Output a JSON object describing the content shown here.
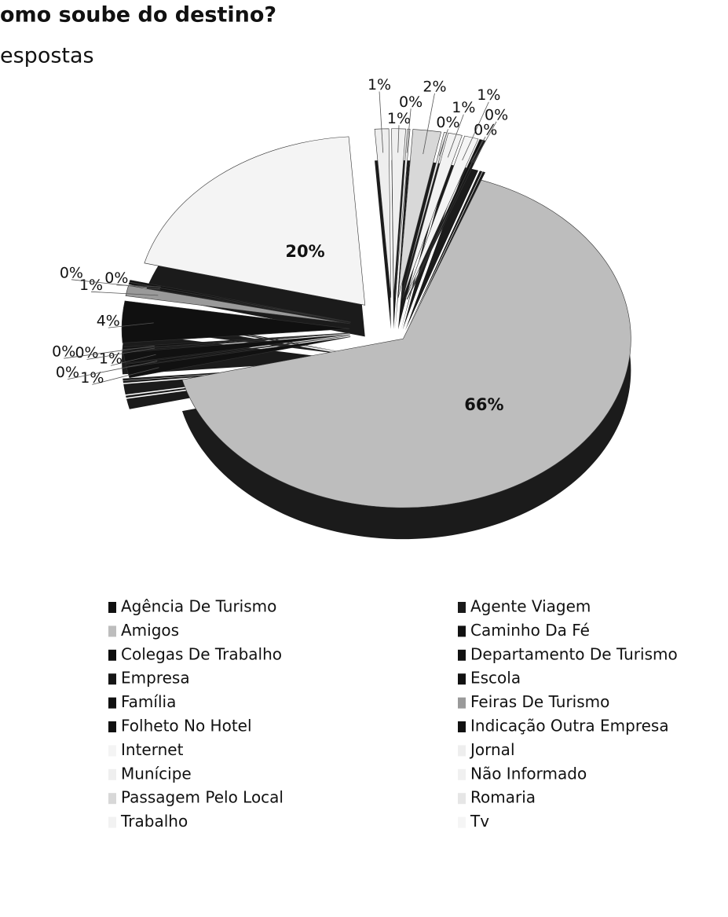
{
  "chart_data": {
    "type": "pie",
    "title": "omo soube do destino?",
    "subtitle": "espostas",
    "categories": [
      "Agência De Turismo",
      "Agente Viagem",
      "Amigos",
      "Caminho Da Fé",
      "Colegas De Trabalho",
      "Departamento De Turismo",
      "Empresa",
      "Escola",
      "Família",
      "Feiras De Turismo",
      "Folheto No Hotel",
      "Indicação Outra Empresa",
      "Internet",
      "Jornal",
      "Munícipe",
      "Não Informado",
      "Passagem Pelo Local",
      "Romaria",
      "Trabalho",
      "Tv"
    ],
    "values": [
      0,
      0,
      66,
      1,
      0,
      1,
      0,
      0,
      4,
      1,
      0,
      0,
      20,
      1,
      1,
      0,
      2,
      0,
      1,
      1
    ],
    "value_labels": [
      "0%",
      "0%",
      "66%",
      "1%",
      "0%",
      "1%",
      "0%",
      "0%",
      "4%",
      "1%",
      "0%",
      "0%",
      "20%",
      "1%",
      "1%",
      "0%",
      "2%",
      "0%",
      "1%",
      "1%"
    ],
    "colors": [
      "#111111",
      "#1a1a1a",
      "#bdbdbd",
      "#111111",
      "#0d0d0d",
      "#111111",
      "#151515",
      "#111111",
      "#101010",
      "#9a9a9a",
      "#111111",
      "#111111",
      "#f4f4f4",
      "#eeeeee",
      "#efefef",
      "#f0f0f0",
      "#d8d8d8",
      "#e6e6e6",
      "#f2f2f2",
      "#f5f5f5"
    ]
  }
}
